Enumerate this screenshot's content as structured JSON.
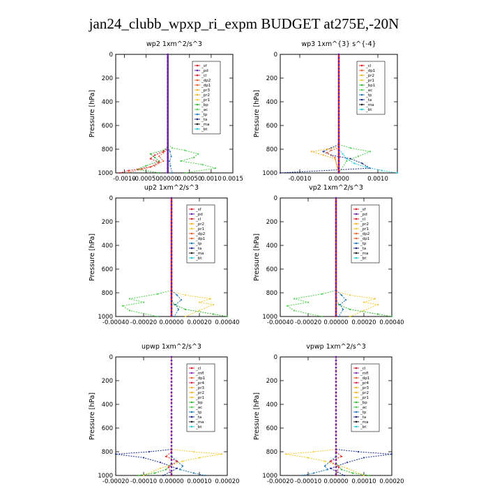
{
  "figure": {
    "title": "jan24_clubb_wpxp_ri_expm  BUDGET at275E,-20N"
  },
  "colors": {
    "sf": "#e0202a",
    "pd": "#6a1fa8",
    "cl": "#e0202a",
    "dp2": "#e8602a",
    "dp1": "#e8602a",
    "pr3": "#f0b020",
    "pr2": "#f0b020",
    "pr1": "#f0c830",
    "bp": "#2fb82f",
    "ac": "#4fd04f",
    "tp": "#1f7ab8",
    "ta": "#1a2a8a",
    "ma": "#1a1a1a",
    "bt": "#20c8d8",
    "mfl": "#8a2ab0",
    "pr4": "#e02040"
  },
  "chart_data": [
    {
      "type": "line",
      "title": "wp2  1xm^2/s^3",
      "ylabel": "Pressure [hPa]",
      "ylim": [
        1000,
        0
      ],
      "yticks": [
        0,
        200,
        400,
        600,
        800,
        1000
      ],
      "xlim": [
        -0.0012,
        0.0015
      ],
      "xticks": [
        -0.001,
        -0.0005,
        0,
        0.0005,
        0.001,
        0.0015
      ],
      "xticklabels": [
        "-0.0010",
        "-0.00050",
        ".00000",
        "0.00050",
        "0.0010",
        "0.0015"
      ],
      "legend": [
        "_sf",
        "_pd",
        "_cl",
        "_dp2",
        "_dp1",
        "_pr3",
        "_pr2",
        "_pr1",
        "_bp",
        "_ac",
        "_tp",
        "_ta",
        "_ma",
        "_bt"
      ],
      "series": [
        {
          "key": "ac",
          "x": [
            0,
            0,
            0.0001,
            0.0004,
            0.0007,
            0.0006,
            0.0003,
            0.0008,
            0.0011,
            0.0004
          ],
          "y": [
            0,
            760,
            790,
            810,
            840,
            870,
            900,
            930,
            960,
            1000
          ]
        },
        {
          "key": "bp",
          "x": [
            0,
            0,
            -0.0001,
            -0.0004,
            -0.0003,
            -0.0002,
            -0.0005,
            -0.0007,
            -0.0002
          ],
          "y": [
            0,
            780,
            810,
            840,
            870,
            900,
            940,
            970,
            1000
          ]
        },
        {
          "key": "cl",
          "x": [
            0,
            0,
            -0.0001,
            -0.0003,
            -0.0004,
            -0.0002,
            -0.0004,
            -0.0009,
            -0.0011
          ],
          "y": [
            0,
            790,
            820,
            850,
            880,
            910,
            950,
            980,
            1000
          ]
        },
        {
          "key": "dp2",
          "x": [
            0,
            0,
            -0.0001,
            -0.0002,
            -0.0001,
            -0.0003,
            -0.0006,
            -0.0009
          ],
          "y": [
            0,
            800,
            830,
            860,
            900,
            940,
            970,
            995
          ]
        },
        {
          "key": "tp",
          "x": [
            0,
            0,
            5e-05,
            8e-05,
            4e-05,
            6e-05,
            0.0001
          ],
          "y": [
            0,
            780,
            820,
            860,
            900,
            940,
            1000
          ]
        },
        {
          "key": "pd",
          "x": [
            0,
            0,
            0,
            0,
            0
          ],
          "y": [
            0,
            400,
            800,
            900,
            1000
          ]
        }
      ]
    },
    {
      "type": "line",
      "title": "wp3  1xm^{3} s^{-4}",
      "ylabel": "Pressure [hPa]",
      "ylim": [
        1000,
        0
      ],
      "yticks": [
        0,
        200,
        400,
        600,
        800,
        1000
      ],
      "xlim": [
        -0.0015,
        0.0015
      ],
      "xticks": [
        -0.001,
        0,
        0.001
      ],
      "xticklabels": [
        "-0.0010",
        "0.0000",
        "0.0010"
      ],
      "legend": [
        "_cl",
        "_dp1",
        "_pr2",
        "_pr1",
        "_bp1",
        "_ac",
        "_tp",
        "_ta",
        "_ma",
        "_bt"
      ],
      "series": [
        {
          "key": "ta",
          "x": [
            0,
            0,
            -0.0002,
            -0.0004,
            -0.0002,
            0.0003,
            0.0006,
            0.0008,
            -0.0015
          ],
          "y": [
            0,
            760,
            790,
            820,
            850,
            880,
            920,
            960,
            1000
          ]
        },
        {
          "key": "bt",
          "x": [
            0,
            0,
            0.0001,
            0.0002,
            0.0004,
            0.0007,
            0.0011,
            0.0015
          ],
          "y": [
            0,
            800,
            840,
            880,
            920,
            950,
            980,
            1000
          ]
        },
        {
          "key": "ac",
          "x": [
            0,
            0,
            0.0003,
            0.0008,
            0.0005,
            0.0002,
            0
          ],
          "y": [
            0,
            760,
            790,
            820,
            860,
            900,
            1000
          ]
        },
        {
          "key": "pr2",
          "x": [
            0,
            0,
            -0.0003,
            -0.0007,
            -0.0004,
            -0.0001,
            0
          ],
          "y": [
            0,
            780,
            800,
            820,
            850,
            880,
            1000
          ]
        },
        {
          "key": "dp1",
          "x": [
            0,
            0,
            -0.0002,
            -0.0003,
            -0.0001,
            0
          ],
          "y": [
            0,
            790,
            810,
            830,
            870,
            1000
          ]
        },
        {
          "key": "cl",
          "x": [
            0,
            0,
            0,
            0,
            0
          ],
          "y": [
            0,
            400,
            800,
            900,
            1000
          ]
        }
      ]
    },
    {
      "type": "line",
      "title": "up2  1xm^2/s^3",
      "ylabel": "Pressure [hPa]",
      "ylim": [
        1000,
        0
      ],
      "yticks": [
        0,
        200,
        400,
        600,
        800,
        1000
      ],
      "xlim": [
        -0.0004,
        0.0004
      ],
      "xticks": [
        -0.0004,
        -0.0002,
        0,
        0.0002,
        0.0004
      ],
      "xticklabels": [
        "-0.00040",
        "-0.00020",
        "0.00000",
        "0.00020",
        "0.00040"
      ],
      "legend": [
        "_sf",
        "_pd",
        "_cl",
        "_pr2",
        "_pr1",
        "_dp2",
        "_dp1",
        "_tp",
        "_ta",
        "_ma",
        "_bt"
      ],
      "series": [
        {
          "key": "ac",
          "x": [
            0,
            0,
            -0.0001,
            -0.0003,
            -0.0002,
            -0.00035,
            -0.0003,
            -0.0001
          ],
          "y": [
            0,
            780,
            810,
            850,
            880,
            910,
            950,
            1000
          ]
        },
        {
          "key": "pr1",
          "x": [
            0,
            0,
            0.0001,
            0.00028,
            0.0002,
            0.0003,
            0.0002,
            0.0001
          ],
          "y": [
            0,
            790,
            820,
            850,
            880,
            900,
            950,
            1000
          ]
        },
        {
          "key": "bp",
          "x": [
            0,
            0,
            2e-05,
            0.0001,
            0.0003,
            0.0004
          ],
          "y": [
            0,
            850,
            900,
            940,
            980,
            1000
          ]
        },
        {
          "key": "tp",
          "x": [
            0,
            0,
            4e-05,
            7e-05,
            3e-05,
            5e-05,
            2e-05
          ],
          "y": [
            0,
            780,
            820,
            860,
            900,
            940,
            1000
          ]
        },
        {
          "key": "cl",
          "x": [
            0,
            0,
            0,
            0,
            0
          ],
          "y": [
            0,
            400,
            800,
            900,
            1000
          ]
        }
      ]
    },
    {
      "type": "line",
      "title": "vp2  1xm^2/s^3",
      "ylabel": "Pressure [hPa]",
      "ylim": [
        1000,
        0
      ],
      "yticks": [
        0,
        200,
        400,
        600,
        800,
        1000
      ],
      "xlim": [
        -0.0004,
        0.0004
      ],
      "xticks": [
        -0.0004,
        -0.0002,
        0,
        0.0002,
        0.0004
      ],
      "xticklabels": [
        "-0.00040",
        "-0.00020",
        "0.00000",
        "0.00020",
        "0.00040"
      ],
      "legend": [
        "_sf",
        "_pd",
        "_cl",
        "_pr2",
        "_pr1",
        "_dp2",
        "_dp1",
        "_tp",
        "_ta",
        "_ma",
        "_bt"
      ],
      "series": [
        {
          "key": "ac",
          "x": [
            0,
            0,
            -0.0001,
            -0.0003,
            -0.0002,
            -0.00035,
            -0.0003,
            -0.0001
          ],
          "y": [
            0,
            780,
            810,
            850,
            880,
            910,
            950,
            1000
          ]
        },
        {
          "key": "pr1",
          "x": [
            0,
            0,
            0.0001,
            0.00028,
            0.0002,
            0.0003,
            0.0002,
            0.0001
          ],
          "y": [
            0,
            790,
            820,
            850,
            880,
            900,
            950,
            1000
          ]
        },
        {
          "key": "bp",
          "x": [
            0,
            0,
            2e-05,
            0.0001,
            0.0003,
            0.0004
          ],
          "y": [
            0,
            850,
            900,
            940,
            980,
            1000
          ]
        },
        {
          "key": "tp",
          "x": [
            0,
            0,
            4e-05,
            7e-05,
            3e-05,
            5e-05,
            2e-05
          ],
          "y": [
            0,
            780,
            820,
            860,
            900,
            940,
            1000
          ]
        },
        {
          "key": "cl",
          "x": [
            0,
            0,
            0,
            0,
            0
          ],
          "y": [
            0,
            400,
            800,
            900,
            1000
          ]
        }
      ]
    },
    {
      "type": "line",
      "title": "upwp  1xm^2/s^3",
      "ylabel": "Pressure [hPa]",
      "ylim": [
        1000,
        0
      ],
      "yticks": [
        0,
        200,
        400,
        600,
        800,
        1000
      ],
      "xlim": [
        -0.0002,
        0.0002
      ],
      "xticks": [
        -0.0002,
        -0.0001,
        0,
        0.0001,
        0.0002
      ],
      "xticklabels": [
        "-0.00020",
        "-0.00010",
        "0.00000",
        "0.00010",
        "0.00020"
      ],
      "legend": [
        "_cl",
        "_mfl",
        "_dp1",
        "_pr4",
        "_pr3",
        "_pr2",
        "_pr1",
        "_bp",
        "_ac",
        "_tp",
        "_ta",
        "_ma",
        "_bt"
      ],
      "series": [
        {
          "key": "ta",
          "x": [
            0,
            0,
            -8e-05,
            -0.0002,
            -0.0001,
            -4e-05,
            2e-05,
            -3e-05
          ],
          "y": [
            0,
            780,
            800,
            820,
            850,
            890,
            940,
            1000
          ]
        },
        {
          "key": "pr1",
          "x": [
            0,
            0,
            8e-05,
            0.00018,
            0.0001,
            4e-05,
            -4e-05,
            -0.0001
          ],
          "y": [
            0,
            780,
            800,
            820,
            850,
            880,
            940,
            1000
          ]
        },
        {
          "key": "tp",
          "x": [
            0,
            0,
            2e-05,
            4e-05,
            3e-05,
            8e-05,
            0.00012
          ],
          "y": [
            0,
            840,
            880,
            920,
            950,
            980,
            1000
          ]
        },
        {
          "key": "bp",
          "x": [
            0,
            0,
            -2e-05,
            -6e-05,
            -0.00012
          ],
          "y": [
            0,
            900,
            950,
            980,
            1000
          ]
        },
        {
          "key": "cl",
          "x": [
            0,
            0,
            -2e-05,
            2e-05,
            -1e-05,
            0
          ],
          "y": [
            0,
            800,
            840,
            880,
            930,
            1000
          ]
        }
      ]
    },
    {
      "type": "line",
      "title": "vpwp  1xm^2/s^3",
      "ylabel": "Pressure [hPa]",
      "ylim": [
        1000,
        0
      ],
      "yticks": [
        0,
        200,
        400,
        600,
        800,
        1000
      ],
      "xlim": [
        -0.0002,
        0.0002
      ],
      "xticks": [
        -0.0002,
        -0.0001,
        0,
        0.0001,
        0.0002
      ],
      "xticklabels": [
        "-0.00020",
        "-0.00010",
        "0.00000",
        "0.00010",
        "0.00020"
      ],
      "legend": [
        "_cl",
        "_mfl",
        "_dp1",
        "_pr4",
        "_pr3",
        "_pr2",
        "_pr1",
        "_bp",
        "_ac",
        "_tp",
        "_ta",
        "_ma",
        "_bt"
      ],
      "series": [
        {
          "key": "ta",
          "x": [
            0,
            0,
            8e-05,
            0.0002,
            0.0001,
            4e-05,
            -2e-05,
            3e-05
          ],
          "y": [
            0,
            780,
            800,
            820,
            850,
            890,
            940,
            1000
          ]
        },
        {
          "key": "pr1",
          "x": [
            0,
            0,
            -8e-05,
            -0.00018,
            -0.0001,
            -4e-05,
            4e-05,
            0.0001
          ],
          "y": [
            0,
            780,
            800,
            820,
            850,
            880,
            940,
            1000
          ]
        },
        {
          "key": "tp",
          "x": [
            0,
            0,
            -2e-05,
            -4e-05,
            -3e-05,
            -8e-05,
            -0.00012
          ],
          "y": [
            0,
            840,
            880,
            920,
            950,
            980,
            1000
          ]
        },
        {
          "key": "bp",
          "x": [
            0,
            0,
            2e-05,
            6e-05,
            0.00012
          ],
          "y": [
            0,
            900,
            950,
            980,
            1000
          ]
        },
        {
          "key": "cl",
          "x": [
            0,
            0,
            2e-05,
            -2e-05,
            1e-05,
            0
          ],
          "y": [
            0,
            800,
            840,
            880,
            930,
            1000
          ]
        }
      ]
    }
  ]
}
